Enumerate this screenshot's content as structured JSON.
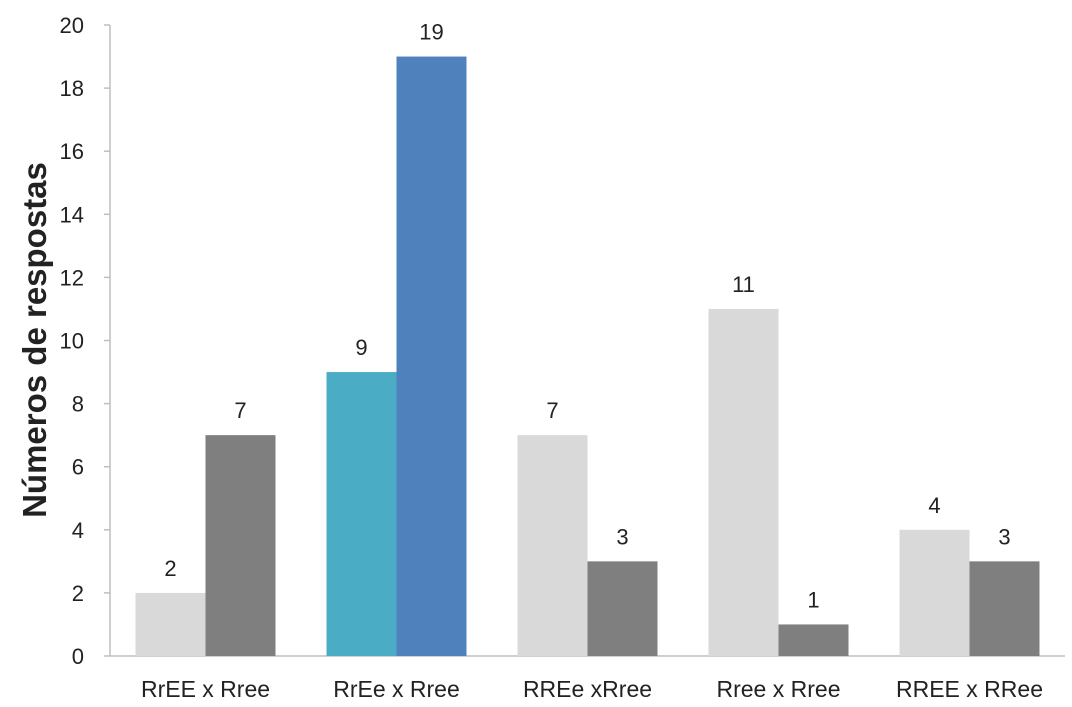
{
  "chart_data": {
    "type": "bar",
    "ylabel": "Números de respostas",
    "xlabel": "",
    "title": "",
    "ylim": [
      0,
      20
    ],
    "yticks": [
      0,
      2,
      4,
      6,
      8,
      10,
      12,
      14,
      16,
      18,
      20
    ],
    "grid": false,
    "legend": "none",
    "categories": [
      "RrEE x Rree",
      "RrEe x Rree",
      "RREe xRree",
      "Rree x Rree",
      "RREE x RRee"
    ],
    "series": [
      {
        "values": [
          2,
          9,
          7,
          11,
          4
        ]
      },
      {
        "values": [
          7,
          19,
          3,
          1,
          3
        ]
      }
    ],
    "bar_colors": [
      [
        "#d9d9d9",
        "#7f7f7f"
      ],
      [
        "#4bacc6",
        "#4f81bd"
      ],
      [
        "#d9d9d9",
        "#7f7f7f"
      ],
      [
        "#d9d9d9",
        "#7f7f7f"
      ],
      [
        "#d9d9d9",
        "#7f7f7f"
      ]
    ],
    "axis_color": "#bfbfbf"
  }
}
